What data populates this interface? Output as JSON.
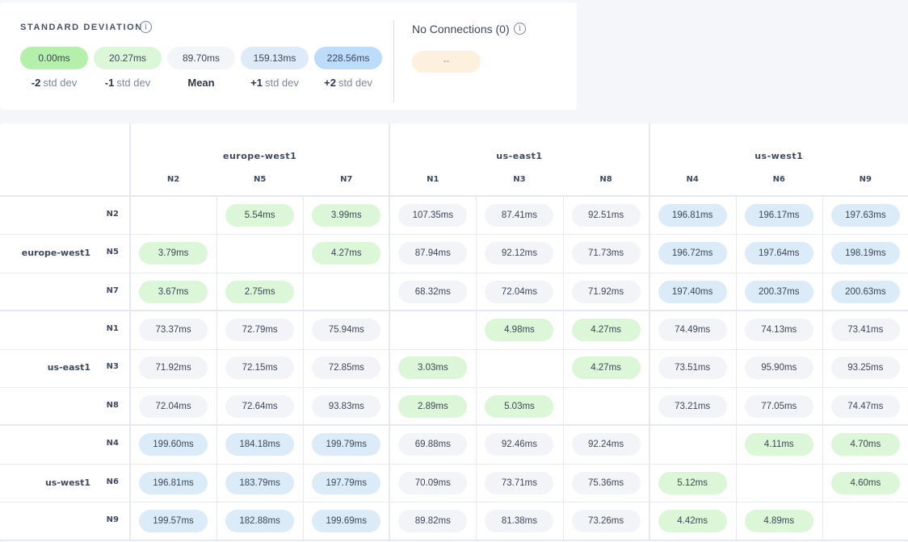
{
  "legend": {
    "title": "STANDARD DEVIATION",
    "info_icon": "info-icon",
    "items": [
      {
        "value": "0.00ms",
        "sign": "-2",
        "label": "std dev",
        "color": "#b4f0ac"
      },
      {
        "value": "20.27ms",
        "sign": "-1",
        "label": "std dev",
        "color": "#dcf7d8"
      },
      {
        "value": "89.70ms",
        "sign": "",
        "label": "Mean",
        "color": "#f3f5f9"
      },
      {
        "value": "159.13ms",
        "sign": "+1",
        "label": "std dev",
        "color": "#deeaf7"
      },
      {
        "value": "228.56ms",
        "sign": "+2",
        "label": "std dev",
        "color": "#bddcfc"
      }
    ],
    "no_connections": {
      "title": "No Connections (0)",
      "value": "--",
      "color": "#fdf0dc"
    }
  },
  "matrix": {
    "regions": [
      {
        "name": "europe-west1",
        "nodes": [
          "N2",
          "N5",
          "N7"
        ]
      },
      {
        "name": "us-east1",
        "nodes": [
          "N1",
          "N3",
          "N8"
        ]
      },
      {
        "name": "us-west1",
        "nodes": [
          "N4",
          "N6",
          "N9"
        ]
      }
    ],
    "rows": [
      [
        "",
        "5.54ms",
        "3.99ms",
        "107.35ms",
        "87.41ms",
        "92.51ms",
        "196.81ms",
        "196.17ms",
        "197.63ms"
      ],
      [
        "3.79ms",
        "",
        "4.27ms",
        "87.94ms",
        "92.12ms",
        "71.73ms",
        "196.72ms",
        "197.64ms",
        "198.19ms"
      ],
      [
        "3.67ms",
        "2.75ms",
        "",
        "68.32ms",
        "72.04ms",
        "71.92ms",
        "197.40ms",
        "200.37ms",
        "200.63ms"
      ],
      [
        "73.37ms",
        "72.79ms",
        "75.94ms",
        "",
        "4.98ms",
        "4.27ms",
        "74.49ms",
        "74.13ms",
        "73.41ms"
      ],
      [
        "71.92ms",
        "72.15ms",
        "72.85ms",
        "3.03ms",
        "",
        "4.27ms",
        "73.51ms",
        "95.90ms",
        "93.25ms"
      ],
      [
        "72.04ms",
        "72.64ms",
        "93.83ms",
        "2.89ms",
        "5.03ms",
        "",
        "73.21ms",
        "77.05ms",
        "74.47ms"
      ],
      [
        "199.60ms",
        "184.18ms",
        "199.79ms",
        "69.88ms",
        "92.46ms",
        "92.24ms",
        "",
        "4.11ms",
        "4.70ms"
      ],
      [
        "196.81ms",
        "183.79ms",
        "197.79ms",
        "70.09ms",
        "73.71ms",
        "75.36ms",
        "5.12ms",
        "",
        "4.60ms"
      ],
      [
        "199.57ms",
        "182.88ms",
        "199.69ms",
        "89.82ms",
        "81.38ms",
        "73.26ms",
        "4.42ms",
        "4.89ms",
        ""
      ]
    ]
  }
}
